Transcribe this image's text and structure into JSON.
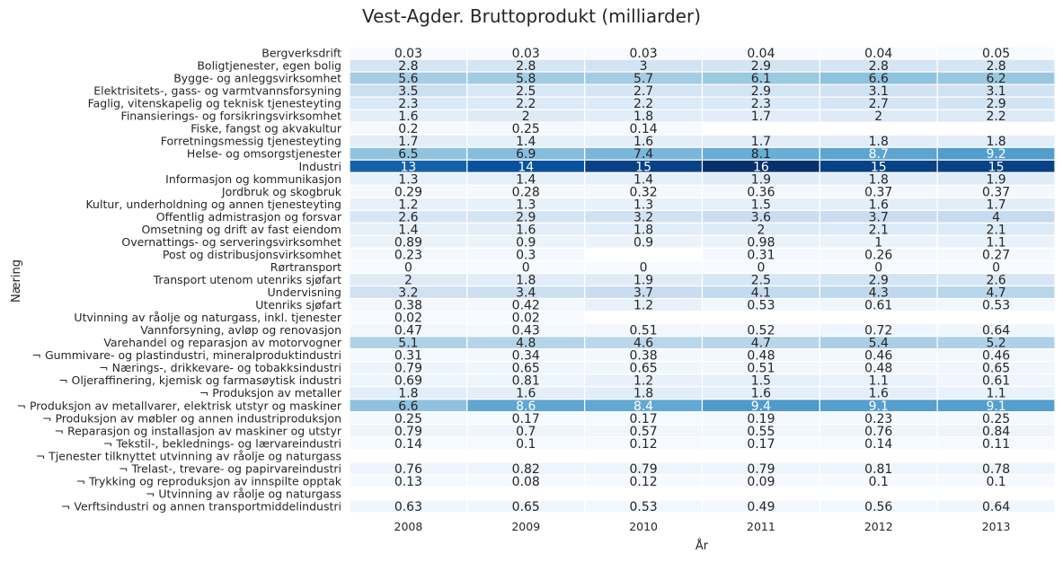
{
  "chart_data": {
    "type": "heatmap",
    "title": "Vest-Agder. Bruttoprodukt (milliarder)",
    "xlabel": "År",
    "ylabel": "Næring",
    "colormap": "Blues",
    "colorscale_range": [
      0,
      16
    ],
    "columns": [
      "2008",
      "2009",
      "2010",
      "2011",
      "2012",
      "2013"
    ],
    "rows": [
      {
        "label": "Bergverksdrift",
        "values": [
          0.03,
          0.03,
          0.03,
          0.04,
          0.04,
          0.05
        ]
      },
      {
        "label": "Boligtjenester, egen bolig",
        "values": [
          2.8,
          2.8,
          3,
          2.9,
          2.8,
          2.8
        ]
      },
      {
        "label": "Bygge- og anleggsvirksomhet",
        "values": [
          5.6,
          5.8,
          5.7,
          6.1,
          6.6,
          6.2
        ]
      },
      {
        "label": "Elektrisitets-, gass- og varmtvannsforsyning",
        "values": [
          3.5,
          2.5,
          2.7,
          2.9,
          3.1,
          3.1
        ]
      },
      {
        "label": "Faglig, vitenskapelig og teknisk tjenesteyting",
        "values": [
          2.3,
          2.2,
          2.2,
          2.3,
          2.7,
          2.9
        ]
      },
      {
        "label": "Finansierings- og forsikringsvirksomhet",
        "values": [
          1.6,
          2,
          1.8,
          1.7,
          2,
          2.2
        ]
      },
      {
        "label": "Fiske, fangst og akvakultur",
        "values": [
          0.2,
          0.25,
          0.14,
          null,
          null,
          null
        ]
      },
      {
        "label": "Forretningsmessig tjenesteyting",
        "values": [
          1.7,
          1.4,
          1.6,
          1.7,
          1.8,
          1.8
        ]
      },
      {
        "label": "Helse- og omsorgstjenester",
        "values": [
          6.5,
          6.9,
          7.4,
          8.1,
          8.7,
          9.2
        ]
      },
      {
        "label": "Industri",
        "values": [
          13,
          14,
          15,
          16,
          15,
          15
        ]
      },
      {
        "label": "Informasjon og kommunikasjon",
        "values": [
          1.3,
          1.4,
          1.4,
          1.9,
          1.8,
          1.9
        ]
      },
      {
        "label": "Jordbruk og skogbruk",
        "values": [
          0.29,
          0.28,
          0.32,
          0.36,
          0.37,
          0.37
        ]
      },
      {
        "label": "Kultur, underholdning og annen tjenesteyting",
        "values": [
          1.2,
          1.3,
          1.3,
          1.5,
          1.6,
          1.7
        ]
      },
      {
        "label": "Offentlig admistrasjon og forsvar",
        "values": [
          2.6,
          2.9,
          3.2,
          3.6,
          3.7,
          4
        ]
      },
      {
        "label": "Omsetning og drift av fast eiendom",
        "values": [
          1.4,
          1.6,
          1.8,
          2,
          2.1,
          2.1
        ]
      },
      {
        "label": "Overnattings- og serveringsvirksomhet",
        "values": [
          0.89,
          0.9,
          0.9,
          0.98,
          1,
          1.1
        ]
      },
      {
        "label": "Post og distribusjonsvirksomhet",
        "values": [
          0.23,
          0.3,
          null,
          0.31,
          0.26,
          0.27
        ]
      },
      {
        "label": "Rørtransport",
        "values": [
          0,
          0,
          0,
          0,
          0,
          0
        ]
      },
      {
        "label": "Transport utenom utenriks sjøfart",
        "values": [
          2,
          1.8,
          1.9,
          2.5,
          2.9,
          2.6
        ]
      },
      {
        "label": "Undervisning",
        "values": [
          3.2,
          3.4,
          3.7,
          4.1,
          4.3,
          4.7
        ]
      },
      {
        "label": "Utenriks sjøfart",
        "values": [
          0.38,
          0.42,
          1.2,
          0.53,
          0.61,
          0.53
        ]
      },
      {
        "label": "Utvinning av råolje og naturgass, inkl. tjenester",
        "values": [
          0.02,
          0.02,
          null,
          null,
          null,
          null
        ]
      },
      {
        "label": "Vannforsyning, avløp og renovasjon",
        "values": [
          0.47,
          0.43,
          0.51,
          0.52,
          0.72,
          0.64
        ]
      },
      {
        "label": "Varehandel og reparasjon av motorvogner",
        "values": [
          5.1,
          4.8,
          4.6,
          4.7,
          5.4,
          5.2
        ]
      },
      {
        "label": "¬ Gummivare- og plastindustri, mineralproduktindustri",
        "values": [
          0.31,
          0.34,
          0.38,
          0.48,
          0.46,
          0.46
        ]
      },
      {
        "label": "¬ Nærings-, drikkevare- og tobakksindustri",
        "values": [
          0.79,
          0.65,
          0.65,
          0.51,
          0.48,
          0.65
        ]
      },
      {
        "label": "¬ Oljeraffinering, kjemisk og farmasøytisk industri",
        "values": [
          0.69,
          0.81,
          1.2,
          1.5,
          1.1,
          0.61
        ]
      },
      {
        "label": "¬ Produksjon av metaller",
        "values": [
          1.8,
          1.6,
          1.8,
          1.6,
          1.6,
          1.1
        ]
      },
      {
        "label": "¬ Produksjon av metallvarer, elektrisk utstyr og maskiner",
        "values": [
          6.6,
          8.6,
          8.4,
          9.4,
          9.1,
          9.1
        ]
      },
      {
        "label": "¬ Produksjon av møbler og annen industriproduksjon",
        "values": [
          0.25,
          0.17,
          0.17,
          0.19,
          0.23,
          0.25
        ]
      },
      {
        "label": "¬ Reparasjon og installasjon av maskiner og utstyr",
        "values": [
          0.79,
          0.7,
          0.57,
          0.55,
          0.76,
          0.84
        ]
      },
      {
        "label": "¬ Tekstil-, beklednings- og lærvareindustri",
        "values": [
          0.14,
          0.1,
          0.12,
          0.17,
          0.14,
          0.11
        ]
      },
      {
        "label": "¬ Tjenester tilknyttet utvinning av råolje og naturgass",
        "values": [
          null,
          null,
          null,
          null,
          null,
          null
        ]
      },
      {
        "label": "¬ Trelast-, trevare- og papirvareindustri",
        "values": [
          0.76,
          0.82,
          0.79,
          0.79,
          0.81,
          0.78
        ]
      },
      {
        "label": "¬ Trykking og reproduksjon av innspilte opptak",
        "values": [
          0.13,
          0.08,
          0.12,
          0.09,
          0.1,
          0.1
        ]
      },
      {
        "label": "¬ Utvinning av råolje og naturgass",
        "values": [
          null,
          null,
          null,
          null,
          null,
          null
        ]
      },
      {
        "label": "¬ Verftsindustri og annen transportmiddelindustri",
        "values": [
          0.63,
          0.65,
          0.53,
          0.49,
          0.56,
          0.64
        ]
      }
    ]
  }
}
